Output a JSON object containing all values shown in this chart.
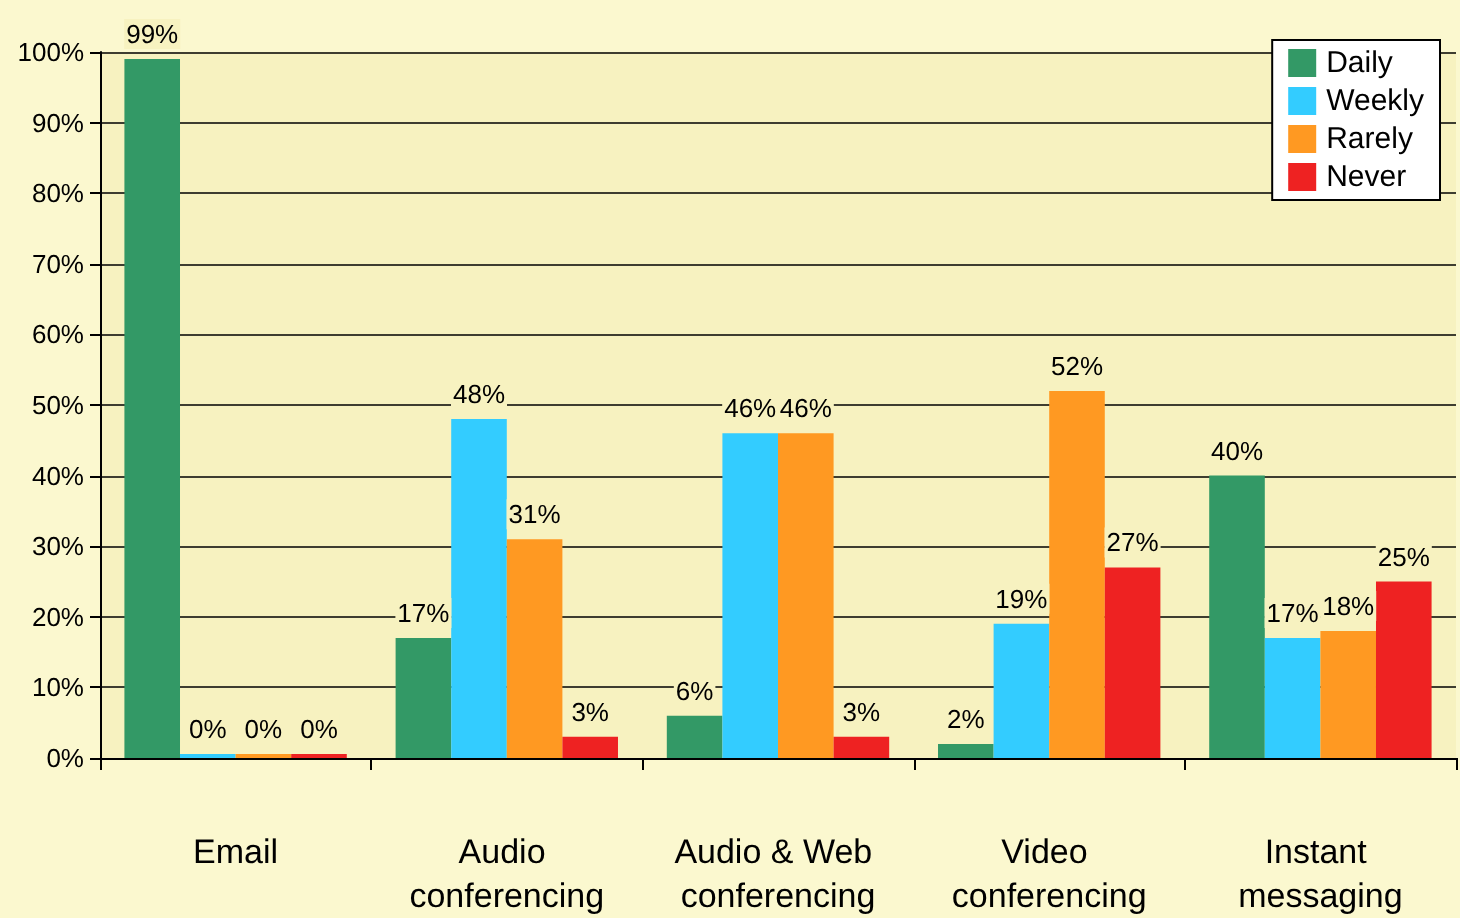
{
  "chart_data": {
    "type": "bar",
    "categories": [
      "Email",
      "Audio conferencing",
      "Audio & Web conferencing",
      "Video conferencing",
      "Instant messaging"
    ],
    "series": [
      {
        "name": "Daily",
        "color": "#339966",
        "values": [
          99,
          17,
          6,
          2,
          40
        ],
        "value_labels": [
          "99%",
          "17%",
          "6%",
          "2%",
          "40%"
        ]
      },
      {
        "name": "Weekly",
        "color": "#33ccff",
        "values": [
          0,
          48,
          46,
          19,
          17
        ],
        "value_labels": [
          "0%",
          "48%",
          "46%",
          "19%",
          "17%"
        ]
      },
      {
        "name": "Rarely",
        "color": "#ff9922",
        "values": [
          0,
          31,
          46,
          52,
          18
        ],
        "value_labels": [
          "0%",
          "31%",
          "46%",
          "52%",
          "18%"
        ]
      },
      {
        "name": "Never",
        "color": "#ee2222",
        "values": [
          0,
          3,
          3,
          27,
          25
        ],
        "value_labels": [
          "0%",
          "3%",
          "3%",
          "27%",
          "25%"
        ]
      }
    ],
    "ylim": [
      0,
      100
    ],
    "yticks": [
      {
        "value": 0,
        "label": "0%"
      },
      {
        "value": 10,
        "label": "10%"
      },
      {
        "value": 20,
        "label": "20%"
      },
      {
        "value": 30,
        "label": "30%"
      },
      {
        "value": 40,
        "label": "40%"
      },
      {
        "value": 50,
        "label": "50%"
      },
      {
        "value": 60,
        "label": "60%"
      },
      {
        "value": 70,
        "label": "70%"
      },
      {
        "value": 80,
        "label": "80%"
      },
      {
        "value": 90,
        "label": "90%"
      },
      {
        "value": 100,
        "label": "100%"
      }
    ],
    "grid": "y",
    "legend": "top right"
  }
}
